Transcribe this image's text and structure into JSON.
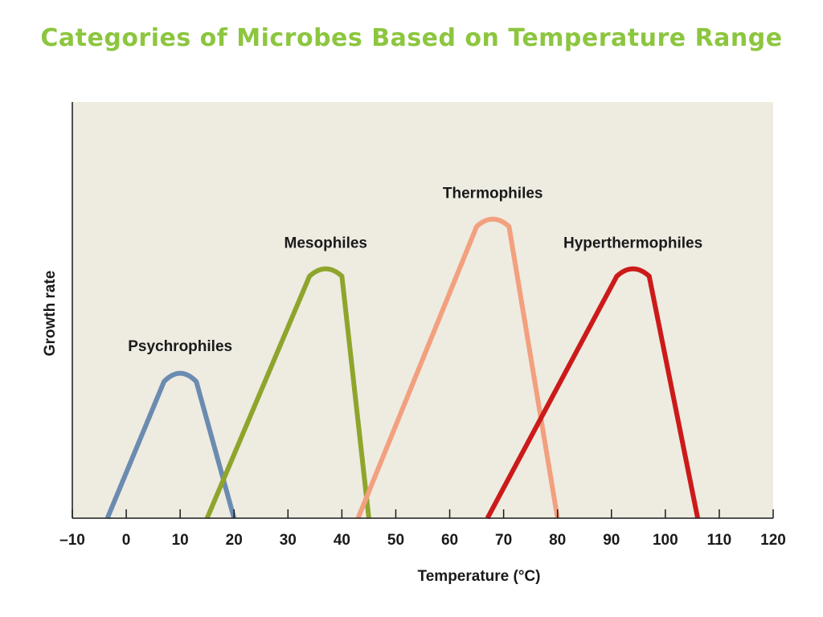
{
  "title": "Categories of Microbes Based on Temperature Range",
  "chart_data": {
    "type": "line",
    "xlabel": "Temperature (°C)",
    "ylabel": "Growth rate",
    "xlim": [
      -10,
      120
    ],
    "ylim": [
      0,
      1
    ],
    "x_ticks": [
      -10,
      0,
      10,
      20,
      30,
      40,
      50,
      60,
      70,
      80,
      90,
      100,
      110,
      120
    ],
    "x_tick_labels": [
      "–10",
      "0",
      "10",
      "20",
      "30",
      "40",
      "50",
      "60",
      "70",
      "80",
      "90",
      "100",
      "110",
      "120"
    ],
    "grid": false,
    "background_color": "#eeebe1",
    "series": [
      {
        "name": "Psychrophiles",
        "color": "#6b8bb0",
        "points": [
          [
            -3.5,
            0
          ],
          [
            7,
            0.33
          ],
          [
            10,
            0.355
          ],
          [
            13,
            0.33
          ],
          [
            20,
            0
          ]
        ]
      },
      {
        "name": "Mesophiles",
        "color": "#8ea52c",
        "points": [
          [
            15,
            0
          ],
          [
            34,
            0.585
          ],
          [
            37,
            0.605
          ],
          [
            40,
            0.585
          ],
          [
            45,
            0
          ]
        ]
      },
      {
        "name": "Thermophiles",
        "color": "#f2a07e",
        "points": [
          [
            43,
            0
          ],
          [
            65,
            0.705
          ],
          [
            68,
            0.725
          ],
          [
            71,
            0.705
          ],
          [
            80,
            0
          ]
        ]
      },
      {
        "name": "Hyperthermophiles",
        "color": "#cc1a1a",
        "points": [
          [
            67,
            0
          ],
          [
            91,
            0.585
          ],
          [
            94,
            0.605
          ],
          [
            97,
            0.585
          ],
          [
            106,
            0
          ]
        ]
      }
    ]
  }
}
